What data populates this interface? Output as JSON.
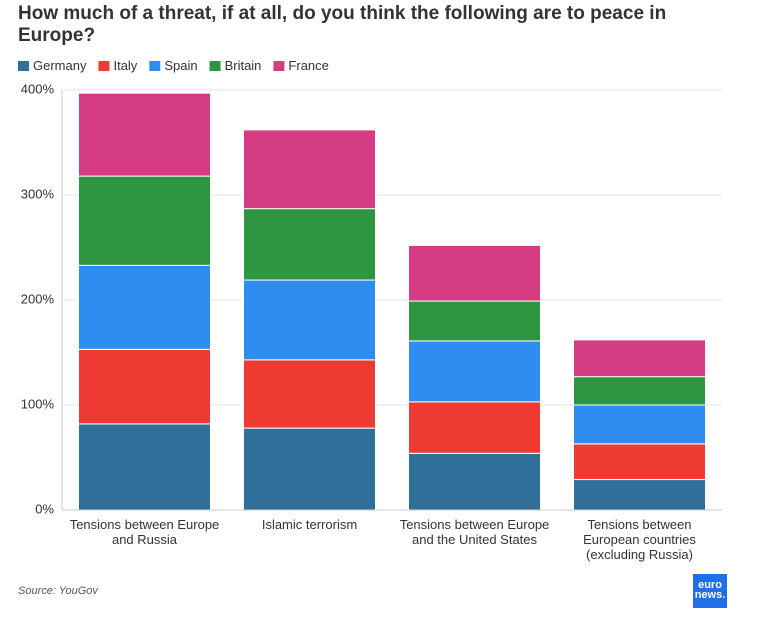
{
  "chart_data": {
    "type": "stacked_bar",
    "title": "How much of a threat, if at all, do you think the following are to peace in Europe?",
    "categories": [
      "Tensions between Europe and Russia",
      "Islamic terrorism",
      "Tensions between Europe and the United States",
      "Tensions between European countries (excluding Russia)"
    ],
    "series": [
      {
        "name": "Germany",
        "color": "#2f6f98",
        "values": [
          82,
          78,
          54,
          29
        ]
      },
      {
        "name": "Italy",
        "color": "#ee3a33",
        "values": [
          71,
          65,
          49,
          34
        ]
      },
      {
        "name": "Spain",
        "color": "#2f8cf0",
        "values": [
          80,
          76,
          58,
          37
        ]
      },
      {
        "name": "Britain",
        "color": "#2e9640",
        "values": [
          85,
          68,
          38,
          27
        ]
      },
      {
        "name": "France",
        "color": "#d53c82",
        "values": [
          79,
          75,
          53,
          35
        ]
      }
    ],
    "ylim": [
      0,
      400
    ],
    "yticks": [
      {
        "value": 0,
        "label": "0%"
      },
      {
        "value": 100,
        "label": "100%"
      },
      {
        "value": 200,
        "label": "200%"
      },
      {
        "value": 300,
        "label": "300%"
      },
      {
        "value": 400,
        "label": "400%"
      }
    ],
    "grid": true,
    "source": "Source: YouGov",
    "logo": [
      "euro",
      "news."
    ]
  }
}
